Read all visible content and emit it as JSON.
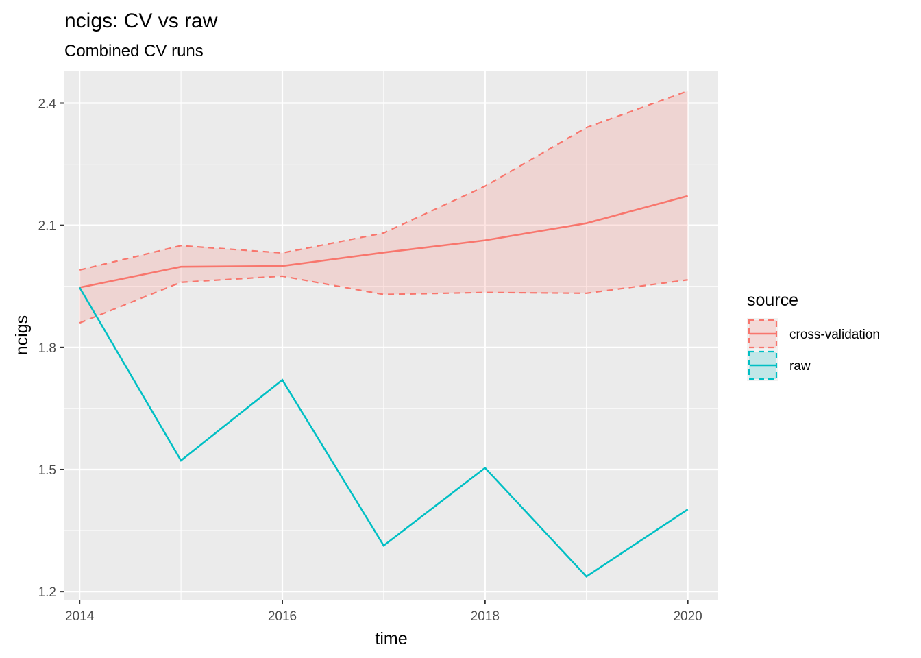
{
  "chart_data": {
    "type": "line",
    "title": "ncigs: CV vs raw",
    "subtitle": "Combined CV runs",
    "xlabel": "time",
    "ylabel": "ncigs",
    "xlim": [
      2013.85,
      2020.3
    ],
    "ylim": [
      1.18,
      2.48
    ],
    "x_ticks": [
      2014,
      2016,
      2018,
      2020
    ],
    "y_ticks": [
      1.2,
      1.5,
      1.8,
      2.1,
      2.4
    ],
    "y_tick_labels": [
      "1.2",
      "1.5",
      "1.8",
      "2.1",
      "2.4"
    ],
    "x": [
      2014,
      2015,
      2016,
      2017,
      2018,
      2019,
      2020
    ],
    "series": [
      {
        "name": "cross-validation",
        "color": "#F8766D",
        "values": [
          1.947,
          1.998,
          2.0,
          2.033,
          2.063,
          2.105,
          2.172
        ],
        "lower": [
          1.86,
          1.96,
          1.975,
          1.93,
          1.935,
          1.933,
          1.966
        ],
        "upper": [
          1.99,
          2.05,
          2.032,
          2.081,
          2.196,
          2.34,
          2.43
        ]
      },
      {
        "name": "raw",
        "color": "#00BFC4",
        "values": [
          1.947,
          1.522,
          1.72,
          1.313,
          1.504,
          1.237,
          1.402
        ]
      }
    ],
    "grid": true,
    "legend": {
      "title": "source",
      "placement": "right"
    }
  }
}
